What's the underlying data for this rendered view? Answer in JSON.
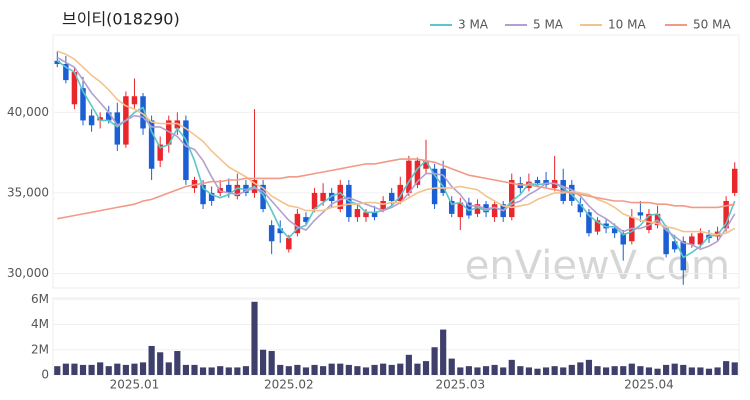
{
  "chart_data": [
    {
      "type": "candlestick",
      "title": "브이티(018290)",
      "watermark": "enViewV.com",
      "up_color": "#e8262b",
      "down_color": "#1c5fd4",
      "grid": true,
      "legend": "top-right",
      "ylim": [
        29100,
        44800
      ],
      "yticks": [
        {
          "value": 30000,
          "label": "30,000"
        },
        {
          "value": 35000,
          "label": "35,000"
        },
        {
          "value": 40000,
          "label": "40,000"
        }
      ],
      "open": [
        43200,
        43000,
        40500,
        41500,
        39800,
        39500,
        40000,
        40000,
        38000,
        40500,
        41000,
        39500,
        37000,
        38000,
        39000,
        39500,
        35300,
        35500,
        35000,
        35000,
        35500,
        34800,
        35500,
        35000,
        35500,
        33000,
        32800,
        31500,
        32500,
        33500,
        34000,
        34500,
        35000,
        34000,
        35500,
        33500,
        33500,
        33800,
        34000,
        35000,
        34500,
        35000,
        35500,
        36500,
        36500,
        36500,
        34500,
        33500,
        34400,
        33700,
        34300,
        33500,
        34300,
        33500,
        35600,
        35300,
        35800,
        35800,
        35300,
        35800,
        35500,
        34300,
        33800,
        32600,
        33100,
        32800,
        32500,
        32000,
        33800,
        32700,
        33000,
        32800,
        32000,
        32000,
        31800,
        31800,
        32400,
        32300,
        32800,
        35000
      ],
      "high": [
        43800,
        43500,
        42800,
        42200,
        40200,
        40000,
        40400,
        40600,
        41300,
        42100,
        41200,
        39800,
        38500,
        39800,
        40000,
        39800,
        36000,
        35800,
        35400,
        35800,
        35900,
        36200,
        35800,
        40200,
        35800,
        33300,
        33300,
        32400,
        34000,
        33800,
        35300,
        35600,
        35300,
        35800,
        35800,
        34300,
        34000,
        34200,
        34800,
        35300,
        36000,
        37300,
        37200,
        38300,
        36800,
        37000,
        34800,
        34700,
        34700,
        34600,
        34500,
        34500,
        34500,
        36200,
        36000,
        36200,
        36000,
        36300,
        37300,
        36500,
        35800,
        34700,
        34000,
        33500,
        33400,
        33100,
        32700,
        34000,
        34500,
        34000,
        34200,
        33000,
        32400,
        32300,
        32500,
        32800,
        32700,
        32900,
        34800,
        36900
      ],
      "low": [
        42800,
        41800,
        40200,
        39200,
        38800,
        39000,
        39300,
        37600,
        37800,
        40200,
        38600,
        35800,
        36600,
        37500,
        38600,
        35500,
        35000,
        34000,
        34200,
        34800,
        34700,
        34600,
        34800,
        34700,
        33800,
        31200,
        31900,
        31300,
        32300,
        33000,
        33800,
        34200,
        34100,
        33800,
        33200,
        33200,
        33200,
        33300,
        33800,
        34200,
        34300,
        34800,
        35300,
        36200,
        34000,
        34800,
        33500,
        32700,
        33400,
        33500,
        33500,
        33200,
        33200,
        33300,
        35000,
        35100,
        35400,
        35300,
        35100,
        34300,
        34200,
        33500,
        32300,
        32400,
        32500,
        32200,
        30800,
        31800,
        33200,
        32500,
        32800,
        31000,
        31300,
        29300,
        31600,
        31600,
        31900,
        32000,
        32600,
        34800
      ],
      "close": [
        43000,
        42000,
        42500,
        39500,
        39200,
        39700,
        39500,
        38000,
        41000,
        41000,
        39000,
        36500,
        38000,
        39500,
        39500,
        35800,
        35800,
        34300,
        34500,
        35300,
        35000,
        35500,
        35000,
        35800,
        34000,
        32000,
        32500,
        32200,
        33700,
        33200,
        35000,
        35000,
        34500,
        35500,
        33500,
        34000,
        33800,
        33500,
        34500,
        34500,
        35500,
        37000,
        37000,
        37000,
        34300,
        35000,
        33700,
        34400,
        33600,
        34300,
        33800,
        34300,
        33500,
        35800,
        35300,
        35700,
        35600,
        35500,
        35800,
        34500,
        34500,
        33800,
        32500,
        33300,
        32800,
        32500,
        31800,
        33500,
        33600,
        33700,
        33700,
        31200,
        31500,
        30200,
        32300,
        32500,
        32200,
        32600,
        34500,
        36500
      ],
      "series": [
        {
          "name": "3 MA",
          "color": "#5cc6c8",
          "values": [
            43200,
            42800,
            42500,
            41300,
            40400,
            39500,
            39500,
            39100,
            39500,
            40000,
            40300,
            38800,
            37800,
            38000,
            39000,
            38300,
            37000,
            35300,
            34900,
            34700,
            34900,
            35300,
            35200,
            35400,
            34900,
            33900,
            32800,
            32200,
            32800,
            33000,
            34000,
            34400,
            34800,
            35000,
            34500,
            34300,
            33800,
            33800,
            33900,
            34200,
            34800,
            35700,
            36500,
            37000,
            36100,
            35400,
            34300,
            34400,
            33900,
            34100,
            33900,
            34100,
            33900,
            34500,
            34900,
            35600,
            35500,
            35600,
            35600,
            35300,
            34900,
            34300,
            33600,
            33200,
            32900,
            32900,
            32400,
            32600,
            33000,
            33600,
            33700,
            32900,
            32100,
            31000,
            31300,
            31700,
            32300,
            32400,
            33100,
            34500
          ]
        },
        {
          "name": "5 MA",
          "color": "#b3a0d2",
          "values": [
            43400,
            43100,
            42800,
            42000,
            41200,
            40600,
            40000,
            39200,
            39500,
            39800,
            39700,
            39100,
            39100,
            38800,
            38500,
            37900,
            37700,
            37000,
            36000,
            35100,
            35000,
            34900,
            35100,
            35300,
            35100,
            34500,
            33900,
            33300,
            32900,
            32700,
            33300,
            33800,
            34300,
            34600,
            34700,
            34500,
            34300,
            34100,
            33900,
            34100,
            34400,
            35000,
            35700,
            36200,
            36200,
            36100,
            35400,
            34900,
            34200,
            34200,
            34000,
            34100,
            33900,
            34300,
            34500,
            34900,
            35200,
            35600,
            35600,
            35400,
            35200,
            34800,
            34200,
            33700,
            33400,
            33000,
            32600,
            32800,
            32800,
            33000,
            33300,
            32700,
            32300,
            31900,
            31800,
            31500,
            31700,
            32000,
            32800,
            33700
          ]
        },
        {
          "name": "10 MA",
          "color": "#f3c38d",
          "values": [
            43800,
            43600,
            43300,
            42800,
            42300,
            41900,
            41400,
            40800,
            40400,
            40200,
            39900,
            39400,
            39300,
            39300,
            39300,
            39000,
            38600,
            38200,
            37600,
            37100,
            36600,
            36300,
            36000,
            35600,
            35300,
            34800,
            34500,
            34200,
            34100,
            33900,
            33900,
            33900,
            34100,
            34200,
            34300,
            34300,
            34400,
            34400,
            34300,
            34400,
            34400,
            34700,
            35000,
            35200,
            35300,
            35300,
            35300,
            35400,
            35300,
            35200,
            34800,
            34500,
            34200,
            34100,
            34200,
            34300,
            34600,
            34800,
            35000,
            35000,
            35100,
            35000,
            34900,
            34600,
            34400,
            34100,
            33700,
            33500,
            33300,
            33200,
            33100,
            32900,
            32800,
            32600,
            32600,
            32600,
            32500,
            32400,
            32500,
            32800
          ]
        },
        {
          "name": "50 MA",
          "color": "#f29a86",
          "values": [
            33400,
            33500,
            33600,
            33700,
            33800,
            33900,
            34000,
            34100,
            34200,
            34300,
            34500,
            34600,
            34800,
            35000,
            35200,
            35400,
            35500,
            35600,
            35700,
            35700,
            35800,
            35800,
            35900,
            35900,
            35900,
            35900,
            35900,
            36000,
            36000,
            36100,
            36200,
            36300,
            36400,
            36500,
            36600,
            36700,
            36800,
            36800,
            36900,
            37000,
            37100,
            37100,
            37100,
            37000,
            36900,
            36700,
            36500,
            36300,
            36100,
            36000,
            35900,
            35800,
            35700,
            35600,
            35500,
            35500,
            35400,
            35300,
            35200,
            35100,
            35000,
            34900,
            34800,
            34700,
            34600,
            34500,
            34500,
            34400,
            34400,
            34400,
            34300,
            34300,
            34200,
            34200,
            34100,
            34100,
            34100,
            34100,
            34200,
            34300
          ]
        }
      ]
    },
    {
      "type": "bar",
      "color": "#3f3f6b",
      "grid": true,
      "categories": [
        null,
        null,
        null,
        null,
        null,
        null,
        null,
        null,
        null,
        "2025.01",
        null,
        null,
        null,
        null,
        null,
        null,
        null,
        null,
        null,
        null,
        null,
        null,
        null,
        null,
        null,
        null,
        null,
        "2025.02",
        null,
        null,
        null,
        null,
        null,
        null,
        null,
        null,
        null,
        null,
        null,
        null,
        null,
        null,
        null,
        null,
        null,
        null,
        null,
        "2025.03",
        null,
        null,
        null,
        null,
        null,
        null,
        null,
        null,
        null,
        null,
        null,
        null,
        null,
        null,
        null,
        null,
        null,
        null,
        null,
        null,
        null,
        "2025.04",
        null,
        null,
        null,
        null,
        null,
        null,
        null,
        null,
        null,
        null
      ],
      "values": [
        700000,
        900000,
        900000,
        800000,
        800000,
        1000000,
        700000,
        900000,
        800000,
        900000,
        1000000,
        2300000,
        1800000,
        1000000,
        1900000,
        800000,
        800000,
        600000,
        600000,
        700000,
        600000,
        600000,
        700000,
        5800000,
        2000000,
        1900000,
        800000,
        700000,
        800000,
        600000,
        800000,
        700000,
        900000,
        900000,
        800000,
        700000,
        600000,
        800000,
        900000,
        800000,
        900000,
        1600000,
        900000,
        1100000,
        2200000,
        3600000,
        1300000,
        600000,
        700000,
        600000,
        700000,
        800000,
        600000,
        1200000,
        700000,
        600000,
        500000,
        600000,
        700000,
        600000,
        800000,
        1000000,
        1200000,
        700000,
        600000,
        700000,
        700000,
        900000,
        700000,
        600000,
        500000,
        800000,
        900000,
        800000,
        600000,
        600000,
        500000,
        600000,
        1100000,
        1000000
      ],
      "ylim": [
        0,
        6100000
      ],
      "yticks": [
        0,
        {
          "value": 2000000,
          "label": "2M"
        },
        {
          "value": 4000000,
          "label": "4M"
        },
        {
          "value": 6000000,
          "label": "6M"
        }
      ]
    }
  ]
}
